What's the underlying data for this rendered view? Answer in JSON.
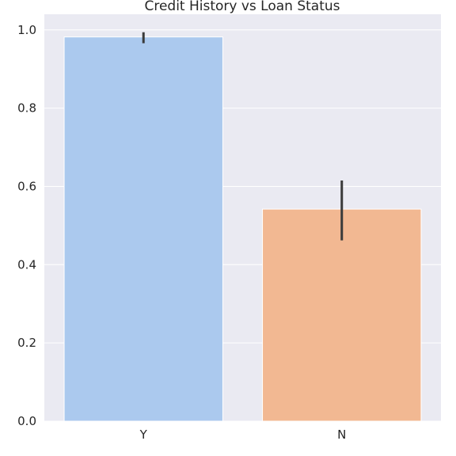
{
  "chart_data": {
    "type": "bar",
    "title": "Credit History vs Loan Status",
    "xlabel": "",
    "ylabel": "",
    "categories": [
      "Y",
      "N"
    ],
    "values": [
      0.982,
      0.542
    ],
    "error_bars": [
      {
        "low": 0.966,
        "high": 0.994
      },
      {
        "low": 0.462,
        "high": 0.615
      }
    ],
    "ylim": [
      0,
      1.04
    ],
    "yticks": [
      0.0,
      0.2,
      0.4,
      0.6,
      0.8,
      1.0
    ],
    "ytick_labels": [
      "0.0",
      "0.2",
      "0.4",
      "0.6",
      "0.8",
      "1.0"
    ],
    "grid": true,
    "colors": {
      "bars": [
        "#abc9ee",
        "#f2b892"
      ],
      "background": "#eaeaf2",
      "grid": "#ffffff",
      "error_bar": "#3a3a3a",
      "text": "#262626"
    }
  }
}
